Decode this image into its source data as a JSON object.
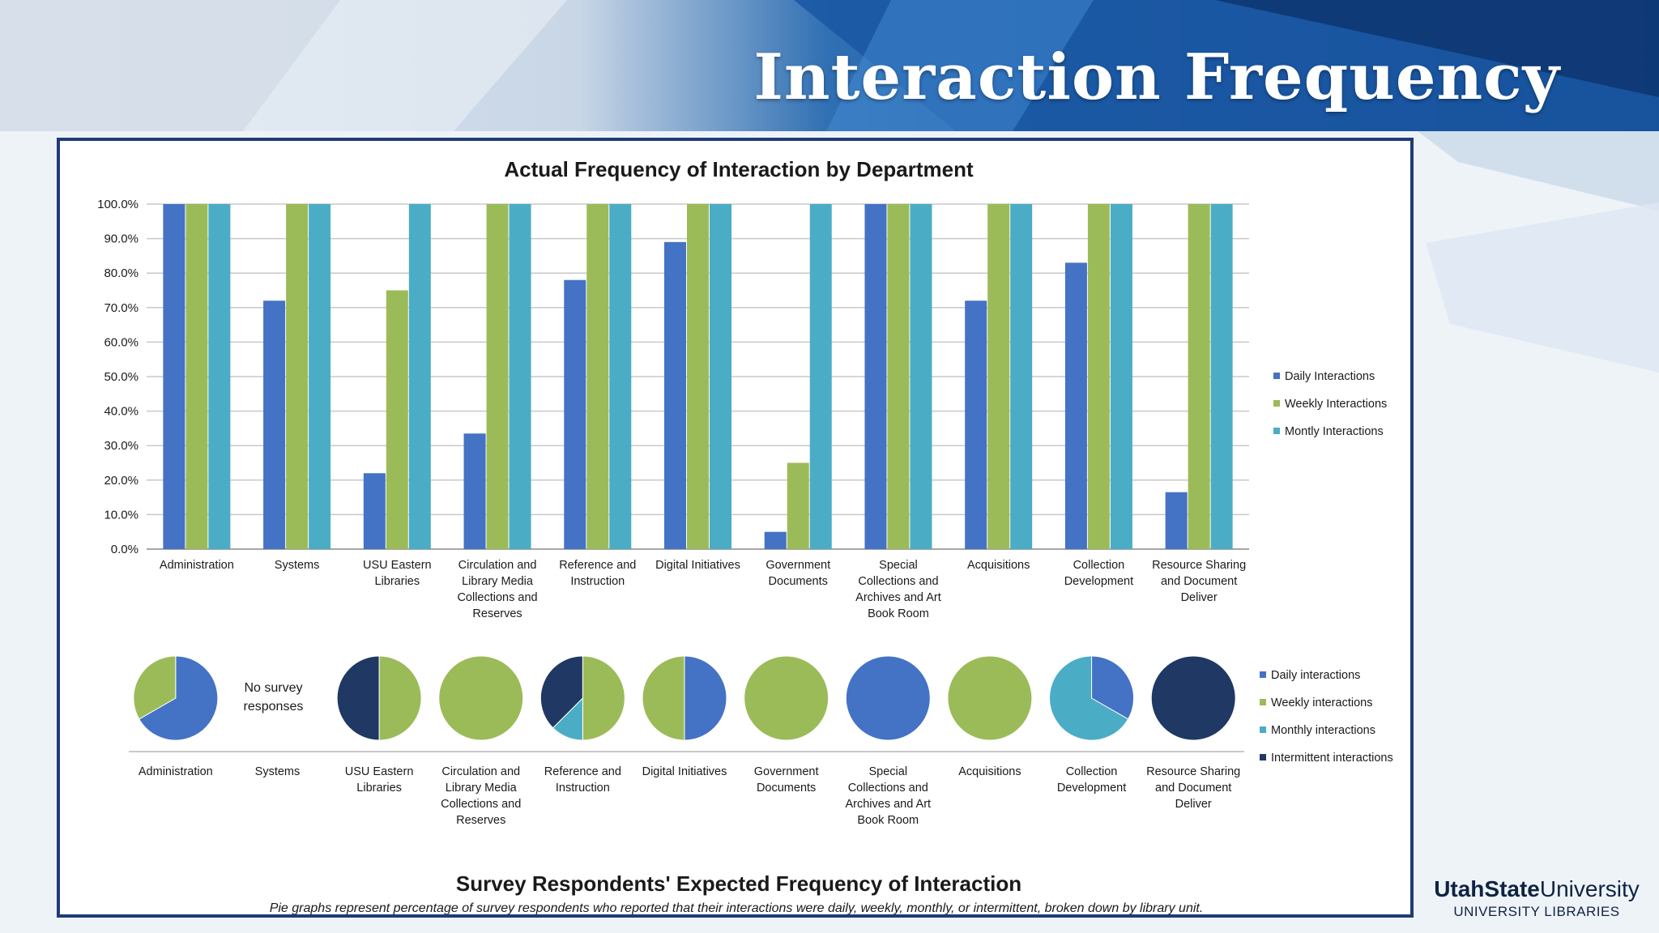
{
  "slide": {
    "title": "Interaction Frequency",
    "logo": {
      "name_bold": "UtahState",
      "name_regular": "University",
      "subtitle": "UNIVERSITY LIBRARIES"
    }
  },
  "chart_data": [
    {
      "type": "bar",
      "title": "Actual Frequency of Interaction by Department",
      "categories": [
        [
          "Administration"
        ],
        [
          "Systems"
        ],
        [
          "USU Eastern",
          "Libraries"
        ],
        [
          "Circulation and",
          "Library Media",
          "Collections and",
          "Reserves"
        ],
        [
          "Reference and",
          "Instruction"
        ],
        [
          "Digital Initiatives"
        ],
        [
          "Government",
          "Documents"
        ],
        [
          "Special",
          "Collections and",
          "Archives and Art",
          "Book Room"
        ],
        [
          "Acquisitions"
        ],
        [
          "Collection",
          "Development"
        ],
        [
          "Resource Sharing",
          "and Document",
          "Deliver"
        ]
      ],
      "series": [
        {
          "name": "Daily Interactions",
          "color": "#4472c4",
          "values": [
            100,
            72,
            22,
            33.5,
            78,
            89,
            5,
            100,
            72,
            83,
            16.5
          ]
        },
        {
          "name": "Weekly Interactions",
          "color": "#9bbb59",
          "values": [
            100,
            100,
            75,
            100,
            100,
            100,
            25,
            100,
            100,
            100,
            100
          ]
        },
        {
          "name": "Montly Interactions",
          "color": "#4bacc6",
          "values": [
            100,
            100,
            100,
            100,
            100,
            100,
            100,
            100,
            100,
            100,
            100
          ]
        }
      ],
      "ylim": [
        0,
        100
      ],
      "yticks": [
        "0.0%",
        "10.0%",
        "20.0%",
        "30.0%",
        "40.0%",
        "50.0%",
        "60.0%",
        "70.0%",
        "80.0%",
        "90.0%",
        "100.0%"
      ],
      "grid": true,
      "legend": "right"
    },
    {
      "type": "pie",
      "title": "Survey Respondents' Expected Frequency of Interaction",
      "caption": "Pie graphs represent percentage of survey respondents who reported that their interactions were daily, weekly, monthly, or intermittent, broken down by library unit.",
      "legend": [
        {
          "name": "Daily interactions",
          "color": "#4472c4"
        },
        {
          "name": "Weekly interactions",
          "color": "#9bbb59"
        },
        {
          "name": "Monthly interactions",
          "color": "#4bacc6"
        },
        {
          "name": "Intermittent interactions",
          "color": "#1f3864"
        }
      ],
      "no_data_note": [
        "No survey",
        "responses"
      ],
      "pies": [
        {
          "label": [
            "Administration"
          ],
          "slices": [
            66.7,
            33.3,
            0,
            0
          ]
        },
        {
          "label": [
            "Systems"
          ],
          "slices": null
        },
        {
          "label": [
            "USU Eastern",
            "Libraries"
          ],
          "slices": [
            0,
            50,
            0,
            50
          ]
        },
        {
          "label": [
            "Circulation and",
            "Library Media",
            "Collections and",
            "Reserves"
          ],
          "slices": [
            0,
            100,
            0,
            0
          ]
        },
        {
          "label": [
            "Reference and",
            "Instruction"
          ],
          "slices": [
            0,
            50,
            12.5,
            37.5
          ]
        },
        {
          "label": [
            "Digital Initiatives"
          ],
          "slices": [
            50,
            50,
            0,
            0
          ]
        },
        {
          "label": [
            "Government",
            "Documents"
          ],
          "slices": [
            0,
            100,
            0,
            0
          ]
        },
        {
          "label": [
            "Special",
            "Collections and",
            "Archives and Art",
            "Book Room"
          ],
          "slices": [
            100,
            0,
            0,
            0
          ]
        },
        {
          "label": [
            "Acquisitions"
          ],
          "slices": [
            0,
            100,
            0,
            0
          ]
        },
        {
          "label": [
            "Collection",
            "Development"
          ],
          "slices": [
            33.3,
            0,
            66.7,
            0
          ]
        },
        {
          "label": [
            "Resource Sharing",
            "and Document",
            "Deliver"
          ],
          "slices": [
            0,
            0,
            0,
            100
          ]
        }
      ]
    }
  ]
}
